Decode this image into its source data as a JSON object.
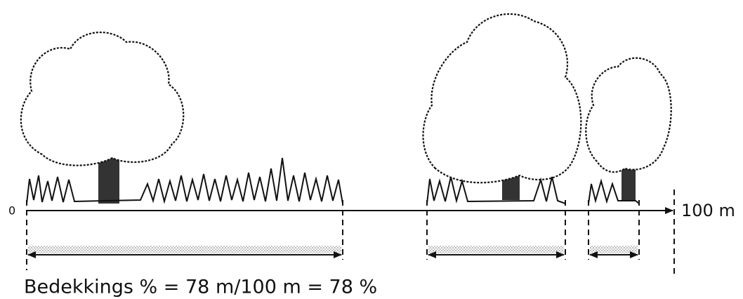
{
  "axis": {
    "start_label": "0",
    "end_label": "100 m"
  },
  "formula": "Bedekkings % = 78 m/100 m = 78 %"
}
